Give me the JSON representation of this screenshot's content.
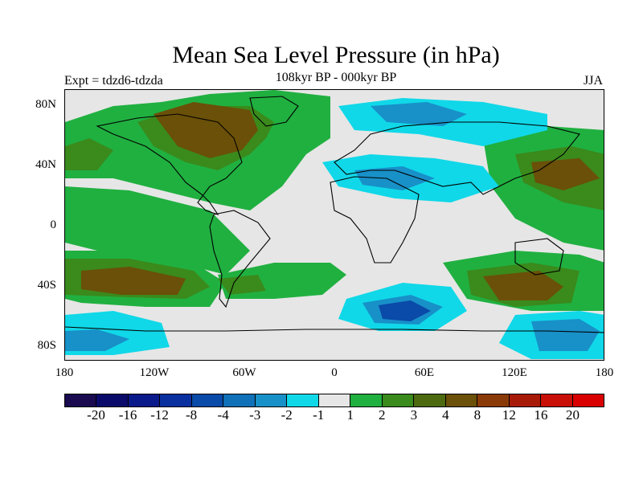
{
  "title": "Mean Sea Level Pressure (in hPa)",
  "subtitle": "108kyr BP - 000kyr BP",
  "expt_label": "Expt = tdzd6-tdzda",
  "season": "JJA",
  "y_axis_labels": [
    "80N",
    "40N",
    "0",
    "40S",
    "80S"
  ],
  "x_axis_labels": [
    "180",
    "120W",
    "60W",
    "0",
    "60E",
    "120E",
    "180"
  ],
  "colorbar": {
    "labels": [
      "-20",
      "-16",
      "-12",
      "-8",
      "-4",
      "-3",
      "-2",
      "-1",
      "1",
      "2",
      "3",
      "4",
      "8",
      "12",
      "16",
      "20"
    ],
    "colors": [
      "#1a0a50",
      "#0a0a6a",
      "#0a1a8a",
      "#0a30a0",
      "#0a4aa8",
      "#1070b8",
      "#1890c8",
      "#10d8e8",
      "#e6e6e6",
      "#20b040",
      "#3a8a1c",
      "#4e6a10",
      "#6a5008",
      "#8a3a08",
      "#a81a08",
      "#c81008",
      "#d80000"
    ]
  }
}
